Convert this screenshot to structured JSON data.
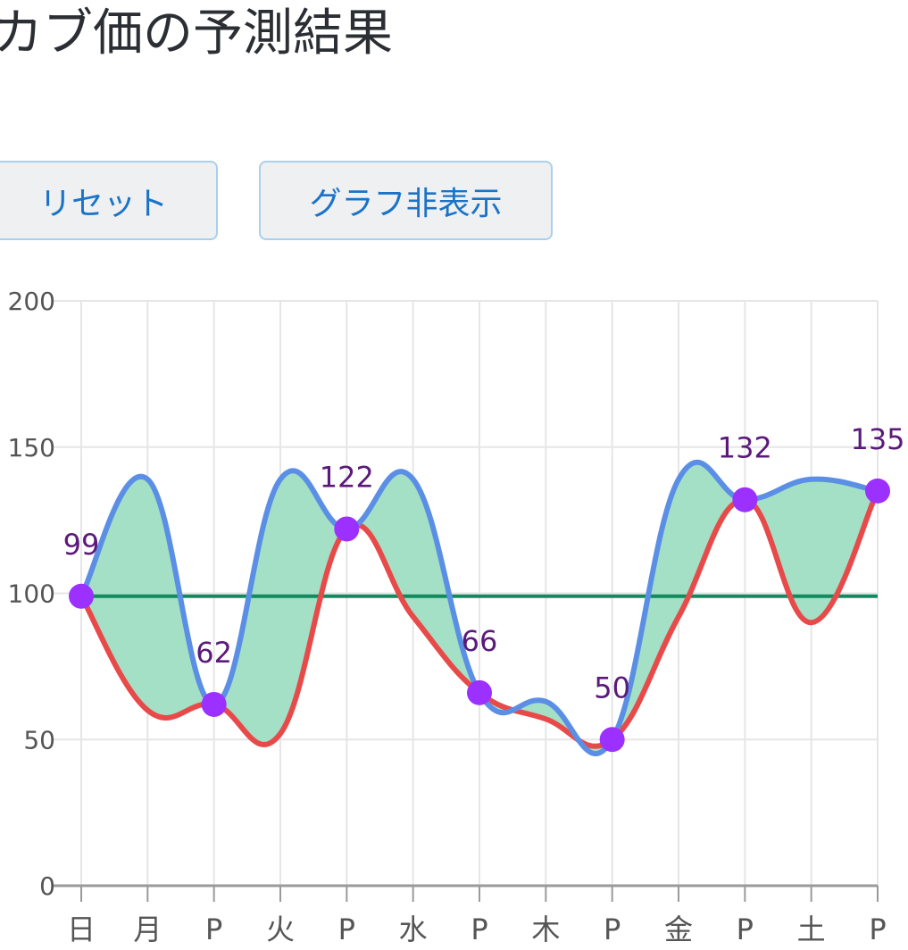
{
  "header": {
    "title": "カブ価の予測結果"
  },
  "toolbar": {
    "reset_label": "リセット",
    "toggle_graph_label": "グラフ非表示"
  },
  "chart_data": {
    "type": "line",
    "categories": [
      "日",
      "月",
      "P",
      "火",
      "P",
      "水",
      "P",
      "木",
      "P",
      "金",
      "P",
      "土",
      "P"
    ],
    "ylim": [
      0,
      200
    ],
    "yticks": [
      0,
      50,
      100,
      150,
      200
    ],
    "grid": true,
    "series": [
      {
        "role": "max",
        "color": "#5b8fe6",
        "values": [
          99,
          139,
          62,
          139,
          122,
          139,
          66,
          63,
          50,
          139,
          132,
          139,
          135
        ]
      },
      {
        "role": "min",
        "color": "#e84a4a",
        "values": [
          99,
          60,
          62,
          52,
          122,
          92,
          66,
          57,
          50,
          92,
          132,
          90,
          135
        ]
      },
      {
        "role": "buy-price",
        "color": "#138a5e",
        "values": [
          99,
          99,
          99,
          99,
          99,
          99,
          99,
          99,
          99,
          99,
          99,
          99,
          99
        ]
      },
      {
        "role": "known-prices",
        "color": "#9b30ff",
        "points": [
          {
            "index": 0,
            "value": 99
          },
          {
            "index": 2,
            "value": 62
          },
          {
            "index": 4,
            "value": 122
          },
          {
            "index": 6,
            "value": 66
          },
          {
            "index": 8,
            "value": 50
          },
          {
            "index": 10,
            "value": 132
          },
          {
            "index": 12,
            "value": 135
          }
        ]
      }
    ],
    "fill_between": {
      "upper": "max",
      "lower": "min",
      "color": "#a3e0c6"
    },
    "data_labels": [
      "99",
      "62",
      "122",
      "66",
      "50",
      "132",
      "135"
    ]
  }
}
